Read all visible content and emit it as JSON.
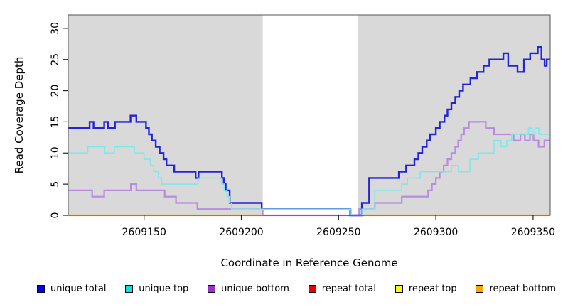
{
  "chart_data": {
    "type": "line",
    "subtype": "step-coverage-plot",
    "title": "",
    "xlabel": "Coordinate in Reference Genome",
    "ylabel": "Read Coverage Depth",
    "xlim": [
      2609111,
      2609358.8
    ],
    "ylim": [
      0,
      32.15
    ],
    "x_ticks": [
      2609150,
      2609200,
      2609250,
      2609300,
      2609350
    ],
    "y_ticks": [
      0,
      5,
      10,
      15,
      20,
      25,
      30
    ],
    "grid": false,
    "plot_bg_color": "#d9d9d9",
    "band": {
      "from": 2609211,
      "to": 2609260,
      "color": "#ffffff"
    },
    "border_color": "#555555",
    "axis_color": "#222222",
    "legend_position": "bottom",
    "series": [
      {
        "name": "unique bottom",
        "line_color": "#b78bdf",
        "legend_color": "#9932cc",
        "width": 2.2,
        "steps": [
          [
            2609111,
            4
          ],
          [
            2609123.3,
            3
          ],
          [
            2609129.5,
            4
          ],
          [
            2609143.2,
            5
          ],
          [
            2609146,
            4
          ],
          [
            2609160.6,
            3
          ],
          [
            2609166.4,
            2
          ],
          [
            2609177.4,
            1
          ],
          [
            2609211,
            0
          ],
          [
            2609260.6,
            1
          ],
          [
            2609268.6,
            2
          ],
          [
            2609282.5,
            3
          ],
          [
            2609296,
            4
          ],
          [
            2609298,
            5
          ],
          [
            2609300,
            6
          ],
          [
            2609302,
            7
          ],
          [
            2609304,
            8
          ],
          [
            2609306,
            9
          ],
          [
            2609308,
            10
          ],
          [
            2609310,
            11
          ],
          [
            2609311.5,
            12
          ],
          [
            2609313,
            13
          ],
          [
            2609314.5,
            14
          ],
          [
            2609317,
            15
          ],
          [
            2609325.7,
            14
          ],
          [
            2609329.9,
            13
          ],
          [
            2609340,
            12
          ],
          [
            2609343.5,
            13
          ],
          [
            2609345.8,
            12
          ],
          [
            2609348.4,
            13
          ],
          [
            2609350.2,
            12
          ],
          [
            2609352.8,
            11
          ],
          [
            2609355.8,
            12
          ]
        ]
      },
      {
        "name": "repeat total",
        "line_color": "#dc3a62",
        "legend_color": "#ee0000",
        "width": 1.4,
        "flat_value": 0,
        "spans": [
          [
            2609111,
            2609358.8
          ]
        ]
      },
      {
        "name": "repeat top",
        "line_color": "#ffff00",
        "legend_color": "#ffff00",
        "width": 1.6,
        "flat_value": 0,
        "spans": [
          [
            2609111,
            2609211
          ],
          [
            2609260,
            2609358.8
          ]
        ]
      },
      {
        "name": "repeat bottom",
        "line_color": "#ff9e1b",
        "legend_color": "#ffa500",
        "width": 2.2,
        "flat_value": 0,
        "spans": [
          [
            2609111,
            2609211
          ],
          [
            2609260,
            2609358.8
          ]
        ]
      },
      {
        "name": "unique total",
        "line_color": "#2323dc",
        "legend_color": "#0000ee",
        "width": 2.4,
        "steps": [
          [
            2609111,
            14
          ],
          [
            2609122,
            15
          ],
          [
            2609124,
            14
          ],
          [
            2609129.5,
            15
          ],
          [
            2609131.5,
            14
          ],
          [
            2609135,
            15
          ],
          [
            2609143,
            16
          ],
          [
            2609146,
            15
          ],
          [
            2609151,
            14
          ],
          [
            2609152.5,
            13
          ],
          [
            2609154,
            12
          ],
          [
            2609156,
            11
          ],
          [
            2609158,
            10
          ],
          [
            2609160,
            9
          ],
          [
            2609161.5,
            8
          ],
          [
            2609165.5,
            7
          ],
          [
            2609176.5,
            6
          ],
          [
            2609178,
            7
          ],
          [
            2609190,
            6
          ],
          [
            2609191,
            5
          ],
          [
            2609192,
            4
          ],
          [
            2609194,
            2
          ],
          [
            2609210.5,
            1
          ],
          [
            2609256,
            0
          ],
          [
            2609262,
            2
          ],
          [
            2609265.7,
            6
          ],
          [
            2609281,
            7
          ],
          [
            2609284.7,
            8
          ],
          [
            2609289,
            9
          ],
          [
            2609291,
            10
          ],
          [
            2609293,
            11
          ],
          [
            2609295.3,
            12
          ],
          [
            2609297,
            13
          ],
          [
            2609300,
            14
          ],
          [
            2609302,
            15
          ],
          [
            2609304.4,
            16
          ],
          [
            2609306,
            17
          ],
          [
            2609308,
            18
          ],
          [
            2609310,
            19
          ],
          [
            2609312,
            20
          ],
          [
            2609314,
            21
          ],
          [
            2609317.8,
            22
          ],
          [
            2609321.2,
            23
          ],
          [
            2609324.5,
            24
          ],
          [
            2609327.5,
            25
          ],
          [
            2609334.7,
            26
          ],
          [
            2609337.2,
            24
          ],
          [
            2609342,
            23
          ],
          [
            2609345.3,
            25
          ],
          [
            2609348.5,
            26
          ],
          [
            2609352.4,
            27
          ],
          [
            2609354.3,
            25
          ],
          [
            2609355.9,
            24
          ],
          [
            2609357,
            25
          ]
        ]
      },
      {
        "name": "unique top",
        "line_color": "#7de8ea",
        "legend_color": "#00e5ee",
        "width": 1.6,
        "steps": [
          [
            2609111,
            10
          ],
          [
            2609121,
            11
          ],
          [
            2609129.8,
            10
          ],
          [
            2609134.7,
            11
          ],
          [
            2609145,
            10
          ],
          [
            2609150,
            9
          ],
          [
            2609153.3,
            8
          ],
          [
            2609155,
            7
          ],
          [
            2609157.3,
            6
          ],
          [
            2609159,
            5
          ],
          [
            2609177.7,
            6
          ],
          [
            2609189.8,
            5
          ],
          [
            2609191.2,
            4
          ],
          [
            2609192.6,
            3
          ],
          [
            2609193.7,
            2
          ],
          [
            2609195,
            1
          ],
          [
            2609256.5,
            0
          ],
          [
            2609262,
            1
          ],
          [
            2609268.6,
            4
          ],
          [
            2609282.5,
            5
          ],
          [
            2609285.4,
            6
          ],
          [
            2609292,
            7
          ],
          [
            2609308,
            8
          ],
          [
            2609311.6,
            7
          ],
          [
            2609317.5,
            9
          ],
          [
            2609321.9,
            10
          ],
          [
            2609329.9,
            12
          ],
          [
            2609333.5,
            11
          ],
          [
            2609336.5,
            12
          ],
          [
            2609339,
            13
          ],
          [
            2609347.6,
            14
          ],
          [
            2609349.5,
            13
          ],
          [
            2609350.9,
            14
          ],
          [
            2609352.9,
            13
          ]
        ]
      }
    ],
    "legend": [
      {
        "label": "unique total",
        "color": "#0000ee"
      },
      {
        "label": "unique top",
        "color": "#00e5ee"
      },
      {
        "label": "unique bottom",
        "color": "#9932cc"
      },
      {
        "label": "repeat total",
        "color": "#ee0000"
      },
      {
        "label": "repeat top",
        "color": "#ffff00"
      },
      {
        "label": "repeat bottom",
        "color": "#ffa500"
      }
    ]
  },
  "layout_note": "coverage step plot with masked white region"
}
